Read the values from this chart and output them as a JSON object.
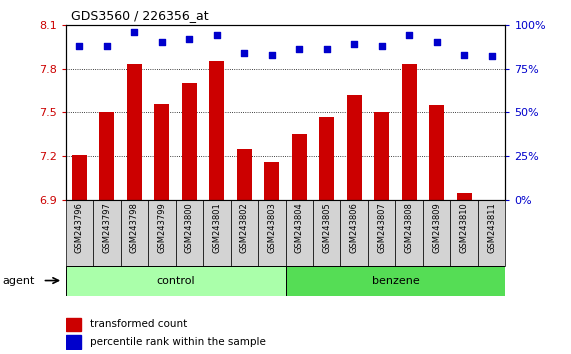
{
  "title": "GDS3560 / 226356_at",
  "samples": [
    "GSM243796",
    "GSM243797",
    "GSM243798",
    "GSM243799",
    "GSM243800",
    "GSM243801",
    "GSM243802",
    "GSM243803",
    "GSM243804",
    "GSM243805",
    "GSM243806",
    "GSM243807",
    "GSM243808",
    "GSM243809",
    "GSM243810",
    "GSM243811"
  ],
  "bar_values": [
    7.21,
    7.5,
    7.83,
    7.56,
    7.7,
    7.85,
    7.25,
    7.16,
    7.35,
    7.47,
    7.62,
    7.5,
    7.83,
    7.55,
    6.95,
    6.9
  ],
  "percentile_values": [
    88,
    88,
    96,
    90,
    92,
    94,
    84,
    83,
    86,
    86,
    89,
    88,
    94,
    90,
    83,
    82
  ],
  "ylim_left": [
    6.9,
    8.1
  ],
  "ylim_right": [
    0,
    100
  ],
  "yticks_left": [
    6.9,
    7.2,
    7.5,
    7.8,
    8.1
  ],
  "yticks_right": [
    0,
    25,
    50,
    75,
    100
  ],
  "ytick_labels_right": [
    "0%",
    "25%",
    "50%",
    "75%",
    "100%"
  ],
  "bar_color": "#cc0000",
  "dot_color": "#0000cc",
  "n_control": 8,
  "n_benzene": 8,
  "control_label": "control",
  "benzene_label": "benzene",
  "agent_label": "agent",
  "legend_bar_label": "transformed count",
  "legend_dot_label": "percentile rank within the sample",
  "control_color": "#aaffaa",
  "benzene_color": "#55dd55",
  "sample_box_color": "#d3d3d3",
  "tick_label_color_left": "#cc0000",
  "tick_label_color_right": "#0000cc"
}
